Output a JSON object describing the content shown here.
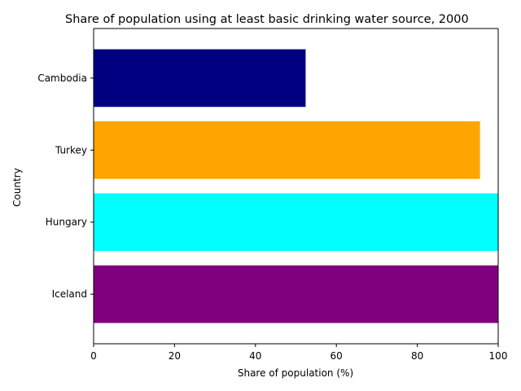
{
  "chart_data": {
    "type": "bar",
    "orientation": "horizontal",
    "title": "Share of population using at least basic drinking water source, 2000",
    "xlabel": "Share of population (%)",
    "ylabel": "Country",
    "categories": [
      "Iceland",
      "Hungary",
      "Turkey",
      "Cambodia"
    ],
    "values": [
      100,
      100,
      95.5,
      52.4
    ],
    "colors": [
      "#800080",
      "#00ffff",
      "#ffa500",
      "#000080"
    ],
    "xlim": [
      0,
      100
    ],
    "xticks": [
      0,
      20,
      40,
      60,
      80,
      100
    ],
    "grid": false,
    "legend": "none"
  }
}
